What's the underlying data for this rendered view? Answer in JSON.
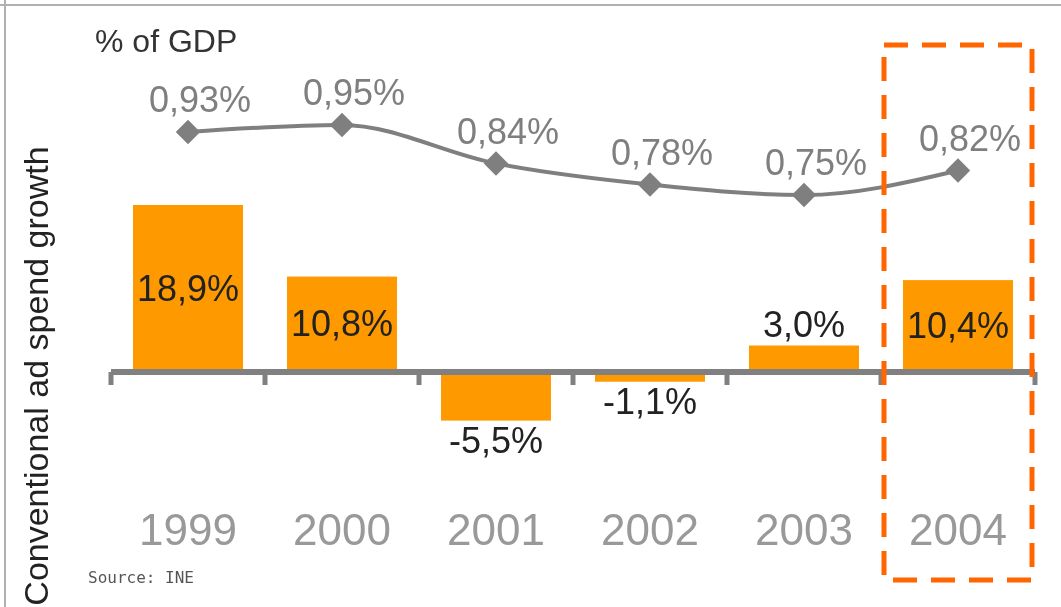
{
  "chart_data": [
    {
      "type": "bar",
      "ylabel": "Conventional ad spend growth",
      "categories": [
        "1999",
        "2000",
        "2001",
        "2002",
        "2003",
        "2004"
      ],
      "color": "#ff9900",
      "values": [
        18.9,
        10.8,
        -5.5,
        -1.1,
        3.0,
        10.4
      ],
      "value_labels": [
        "18,9%",
        "10,8%",
        "-5,5%",
        "-1,1%",
        "3,0%",
        "10,4%"
      ],
      "legend": false,
      "tick_labels": "x",
      "annotations": [
        "Source: INE"
      ]
    },
    {
      "type": "line",
      "title": "% of GDP",
      "categories": [
        "1999",
        "2000",
        "2001",
        "2002",
        "2003",
        "2004"
      ],
      "color": "#7f7f7f",
      "marker": "diamond",
      "values": [
        0.93,
        0.95,
        0.84,
        0.78,
        0.75,
        0.82
      ],
      "value_labels": [
        "0,93%",
        "0,95%",
        "0,84%",
        "0,78%",
        "0,75%",
        "0,82%"
      ],
      "legend": false,
      "tick_labels": false
    }
  ]
}
